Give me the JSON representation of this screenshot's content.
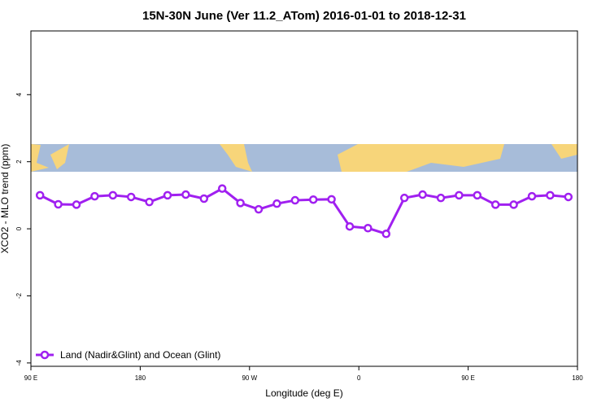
{
  "chart_data": {
    "type": "line",
    "title": "15N-30N June (Ver 11.2_ATom)   2016-01-01 to 2018-12-31",
    "x_label": "Longitude (deg E)",
    "y_label": "XCO2 - MLO trend (ppm)",
    "x": [
      97.5,
      112.5,
      127.5,
      142.5,
      157.5,
      172.5,
      187.5,
      202.5,
      217.5,
      232.5,
      247.5,
      262.5,
      277.5,
      292.5,
      307.5,
      322.5,
      337.5,
      352.5,
      367.5,
      382.5,
      397.5,
      412.5,
      427.5,
      442.5,
      457.5,
      472.5,
      487.5,
      502.5,
      517.5,
      532.5
    ],
    "series": [
      {
        "name": "Land (Nadir&Glint) and Ocean (Glint)",
        "color": "#a020f0",
        "values": [
          1.0,
          0.73,
          0.72,
          0.97,
          1.0,
          0.95,
          0.8,
          1.0,
          1.02,
          0.9,
          1.2,
          0.77,
          0.58,
          0.75,
          0.85,
          0.87,
          0.88,
          0.07,
          0.02,
          -0.15,
          0.92,
          1.02,
          0.92,
          1.0,
          1.0,
          0.72,
          0.72,
          0.97,
          1.0,
          0.95
        ]
      }
    ],
    "xlim": [
      90,
      540
    ],
    "xticks": [
      {
        "value": 90,
        "label": "90 E"
      },
      180,
      {
        "value": 270,
        "label": "90 W"
      },
      {
        "value": 360,
        "label": "0"
      },
      {
        "value": 450,
        "label": "90 E"
      },
      {
        "value": 540,
        "label": "180"
      }
    ],
    "ylim": [
      -4.1,
      5.9
    ],
    "yticks": [
      -4,
      -2,
      0,
      2,
      4
    ],
    "legend": "bottom-left"
  }
}
